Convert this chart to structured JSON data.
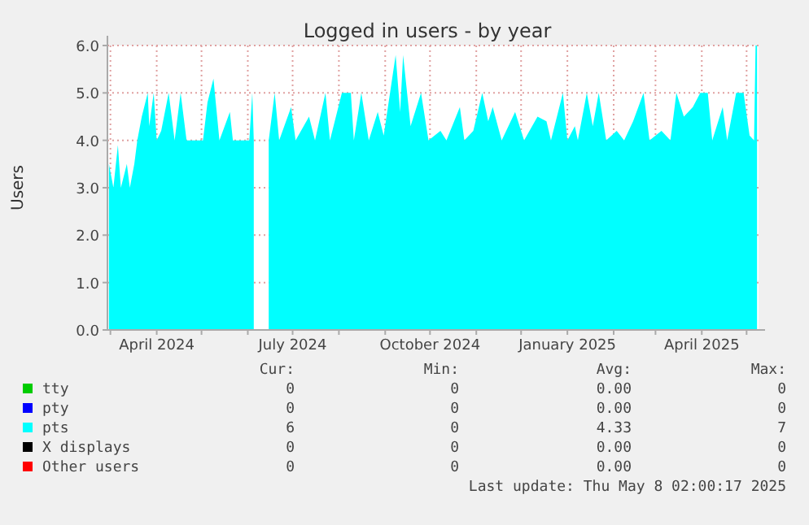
{
  "chart_data": {
    "type": "area",
    "title": "Logged in users - by year",
    "ylabel": "Users",
    "xlim": [
      "2024-02-28",
      "2025-05-09"
    ],
    "xticks": [
      {
        "value": "2024-03-01",
        "label": null
      },
      {
        "value": "2024-04-01",
        "label": "April 2024"
      },
      {
        "value": "2024-05-01",
        "label": null
      },
      {
        "value": "2024-06-01",
        "label": null
      },
      {
        "value": "2024-07-01",
        "label": "July 2024"
      },
      {
        "value": "2024-08-01",
        "label": null
      },
      {
        "value": "2024-09-01",
        "label": null
      },
      {
        "value": "2024-10-01",
        "label": "October 2024"
      },
      {
        "value": "2024-11-01",
        "label": null
      },
      {
        "value": "2024-12-01",
        "label": null
      },
      {
        "value": "2025-01-01",
        "label": "January 2025"
      },
      {
        "value": "2025-02-01",
        "label": null
      },
      {
        "value": "2025-03-01",
        "label": null
      },
      {
        "value": "2025-04-01",
        "label": "April 2025"
      },
      {
        "value": "2025-05-01",
        "label": null
      }
    ],
    "ylim": [
      0,
      6
    ],
    "yticks": [
      {
        "value": 0,
        "label": "0.0"
      },
      {
        "value": 1,
        "label": "1.0"
      },
      {
        "value": 2,
        "label": "2.0"
      },
      {
        "value": 3,
        "label": "3.0"
      },
      {
        "value": 4,
        "label": "4.0"
      },
      {
        "value": 5,
        "label": "5.0"
      },
      {
        "value": 6,
        "label": "6.0"
      }
    ],
    "grid": true,
    "legend": "bottom",
    "series": [
      {
        "name": "tty",
        "color": "#00cc00"
      },
      {
        "name": "pty",
        "color": "#0000ff"
      },
      {
        "name": "pts",
        "color": "#00ffff",
        "x": [
          "2024-02-29",
          "2024-03-03",
          "2024-03-06",
          "2024-03-08",
          "2024-03-12",
          "2024-03-14",
          "2024-03-17",
          "2024-03-19",
          "2024-03-22",
          "2024-03-26",
          "2024-03-27",
          "2024-03-30",
          "2024-04-01",
          "2024-04-04",
          "2024-04-09",
          "2024-04-13",
          "2024-04-17",
          "2024-04-21",
          "2024-05-02",
          "2024-05-05",
          "2024-05-09",
          "2024-05-13",
          "2024-05-20",
          "2024-05-22",
          "2024-06-02",
          "2024-06-04",
          "2024-06-05",
          "2024-06-06",
          "2024-06-15",
          "2024-06-19",
          "2024-06-22",
          "2024-06-30",
          "2024-07-03",
          "2024-07-12",
          "2024-07-16",
          "2024-07-23",
          "2024-07-26",
          "2024-08-03",
          "2024-08-09",
          "2024-08-11",
          "2024-08-16",
          "2024-08-21",
          "2024-08-27",
          "2024-08-31",
          "2024-09-08",
          "2024-09-11",
          "2024-09-13",
          "2024-09-18",
          "2024-09-25",
          "2024-09-30",
          "2024-10-08",
          "2024-10-12",
          "2024-10-21",
          "2024-10-24",
          "2024-10-30",
          "2024-11-05",
          "2024-11-09",
          "2024-11-12",
          "2024-11-18",
          "2024-11-27",
          "2024-12-03",
          "2024-12-12",
          "2024-12-18",
          "2024-12-21",
          "2024-12-29",
          "2025-01-01",
          "2025-01-06",
          "2025-01-08",
          "2025-01-14",
          "2025-01-18",
          "2025-01-22",
          "2025-01-27",
          "2025-02-03",
          "2025-02-08",
          "2025-02-14",
          "2025-02-21",
          "2025-02-25",
          "2025-03-05",
          "2025-03-11",
          "2025-03-15",
          "2025-03-20",
          "2025-03-26",
          "2025-03-31",
          "2025-04-05",
          "2025-04-08",
          "2025-04-15",
          "2025-04-18",
          "2025-04-24",
          "2025-04-29",
          "2025-05-03",
          "2025-05-06",
          "2025-05-07",
          "2025-05-08"
        ],
        "values": [
          3.5,
          3.0,
          3.9,
          3.0,
          3.5,
          3.0,
          3.5,
          4.0,
          4.5,
          5.0,
          4.3,
          5.0,
          4.0,
          4.2,
          5.0,
          4.0,
          5.0,
          4.0,
          4.0,
          4.8,
          5.3,
          4.0,
          4.6,
          4.0,
          4.0,
          5.0,
          4.0,
          null,
          4.0,
          5.0,
          4.0,
          4.7,
          4.0,
          4.5,
          4.0,
          5.0,
          4.0,
          5.0,
          5.0,
          4.0,
          5.0,
          4.0,
          4.6,
          4.1,
          5.8,
          4.6,
          5.8,
          4.3,
          5.0,
          4.0,
          4.2,
          4.0,
          4.7,
          4.0,
          4.2,
          5.0,
          4.4,
          4.7,
          4.0,
          4.6,
          4.0,
          4.5,
          4.4,
          4.0,
          5.0,
          4.0,
          4.3,
          4.0,
          5.0,
          4.3,
          5.0,
          4.0,
          4.2,
          4.0,
          4.4,
          5.0,
          4.0,
          4.2,
          4.0,
          5.0,
          4.5,
          4.7,
          5.0,
          5.0,
          4.0,
          4.7,
          4.0,
          5.0,
          5.0,
          4.1,
          4.0,
          6.0,
          6.0
        ]
      },
      {
        "name": "X displays",
        "color": "#000000"
      },
      {
        "name": "Other users",
        "color": "#ff0000"
      }
    ],
    "annotations": [
      "Cur:",
      "Min:",
      "Avg:",
      "Max:",
      "0",
      "0",
      "0.00",
      "0",
      "0",
      "0",
      "0.00",
      "0",
      "6",
      "0",
      "4.33",
      "7",
      "0",
      "0",
      "0.00",
      "0",
      "0",
      "0",
      "0.00",
      "0",
      "Last update: Thu May  8 02:00:17 2025"
    ]
  }
}
